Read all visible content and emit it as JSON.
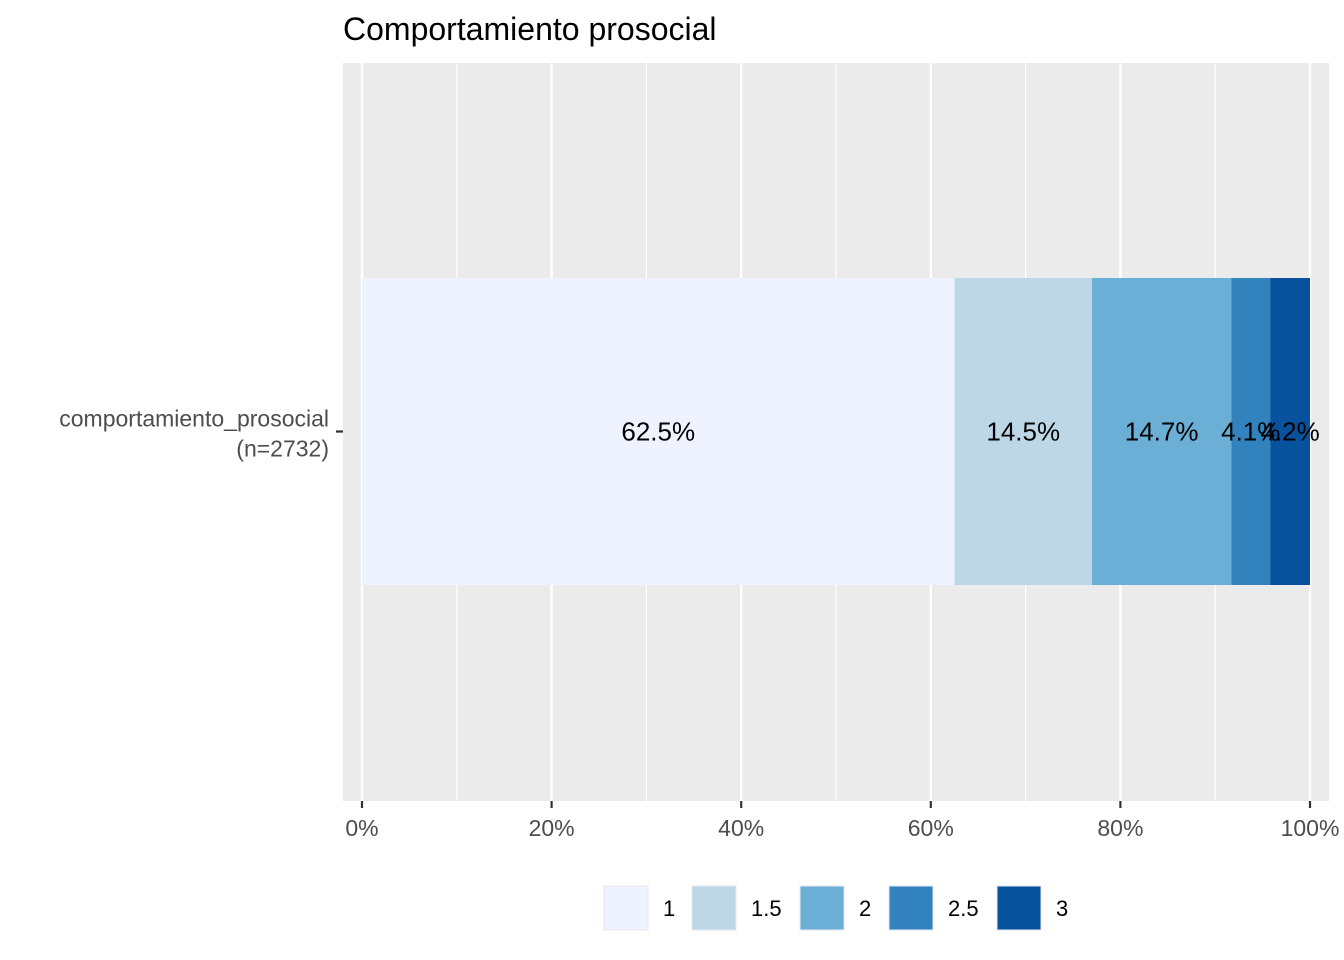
{
  "chart_data": {
    "type": "bar",
    "orientation": "horizontal",
    "stacked": "percent",
    "title": "Comportamiento prosocial",
    "xlabel": "",
    "ylabel": "",
    "categories": [
      "comportamiento_prosocial\n(n=2732)"
    ],
    "category_lines": [
      [
        "comportamiento_prosocial",
        "(n=2732)"
      ]
    ],
    "series": [
      {
        "name": "1",
        "values": [
          62.5
        ],
        "label": "62.5%",
        "color": "#eff3ff"
      },
      {
        "name": "1.5",
        "values": [
          14.5
        ],
        "label": "14.5%",
        "color": "#bdd7e7"
      },
      {
        "name": "2",
        "values": [
          14.7
        ],
        "label": "14.7%",
        "color": "#6baed6"
      },
      {
        "name": "2.5",
        "values": [
          4.1
        ],
        "label": "4.1%",
        "color": "#3182bd"
      },
      {
        "name": "3",
        "values": [
          4.2
        ],
        "label": "4.2%",
        "color": "#08519c"
      }
    ],
    "xlim": [
      0,
      100
    ],
    "xticks": [
      0,
      20,
      40,
      60,
      80,
      100
    ],
    "xtick_labels": [
      "0%",
      "20%",
      "40%",
      "60%",
      "80%",
      "100%"
    ],
    "grid": true,
    "legend": "bottom",
    "panel_color": "#ebebeb",
    "grid_color": "#ffffff"
  }
}
